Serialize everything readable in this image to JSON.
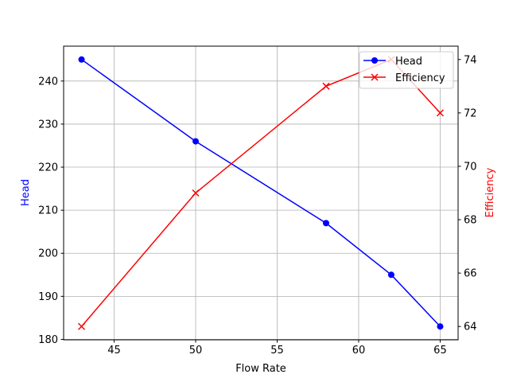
{
  "chart_data": {
    "type": "line",
    "xlabel": "Flow Rate",
    "xlim": [
      41.9,
      66.1
    ],
    "xticks": [
      45,
      50,
      55,
      60,
      65
    ],
    "grid": true,
    "legend_position": "top-right",
    "axes": {
      "left": {
        "ylabel": "Head",
        "ylim": [
          179.9,
          248.1
        ],
        "yticks": [
          180,
          190,
          200,
          210,
          220,
          230,
          240
        ],
        "color": "#0000ff"
      },
      "right": {
        "ylabel": "Efficiency",
        "ylim": [
          63.5,
          74.5
        ],
        "yticks": [
          64,
          66,
          68,
          70,
          72,
          74
        ],
        "color": "#ff0000"
      }
    },
    "x": [
      43,
      50,
      58,
      62,
      65
    ],
    "series": [
      {
        "name": "Head",
        "axis": "left",
        "color": "#0000ff",
        "marker": "circle",
        "values": [
          245,
          226,
          207,
          195,
          183
        ]
      },
      {
        "name": "Efficiency",
        "axis": "right",
        "color": "#ff0000",
        "marker": "x",
        "values": [
          64,
          69,
          73,
          74,
          72
        ]
      }
    ]
  }
}
